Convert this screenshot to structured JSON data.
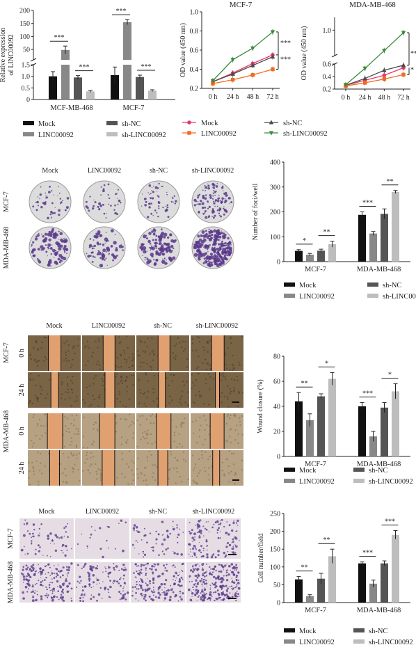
{
  "colors": {
    "mock": "#111111",
    "linc": "#888888",
    "shnc": "#555555",
    "shlinc": "#bdbdbd",
    "mock_line": "#e8356a",
    "linc_line": "#f06a1e",
    "shnc_line": "#4a4a4a",
    "shlinc_line": "#3a8a3a",
    "crystal_violet": "#5b3a8c",
    "wound_gap": "#e0a070",
    "well_bg": "#dcdcdc"
  },
  "legend_bar": [
    "Mock",
    "sh-NC",
    "LINC00092",
    "sh-LINC00092"
  ],
  "legend_line": [
    "Mock",
    "sh-NC",
    "LINC00092",
    "sh-LINC00092"
  ],
  "groups": [
    "Mock",
    "LINC00092",
    "sh-NC",
    "sh-LINC00092"
  ],
  "rows": {
    "foci": [
      "MCF-7",
      "MDA-MB-468"
    ],
    "wound": [
      "MCF-7",
      "MDA-MB-468"
    ],
    "wound_times": [
      "0 h",
      "24 h"
    ],
    "transwell": [
      "MCF-7",
      "MDA-MB-468"
    ]
  },
  "chart_data": [
    {
      "id": "expr",
      "type": "bar",
      "ylabel": "Relative expression of LINC00092",
      "ylim_broken": [
        [
          0,
          1.5
        ],
        [
          10,
          200
        ]
      ],
      "yticks": [
        "0",
        "0.5",
        "1.0",
        "1.5",
        "50",
        "100",
        "150",
        "200"
      ],
      "categories": [
        "MCF-MB-468",
        "MCF-7"
      ],
      "series": [
        {
          "name": "Mock",
          "values": [
            1.0,
            1.05
          ],
          "err": [
            0.2,
            0.35
          ]
        },
        {
          "name": "LINC00092",
          "values": [
            48,
            155
          ],
          "err": [
            15,
            10
          ]
        },
        {
          "name": "sh-NC",
          "values": [
            0.95,
            0.97
          ],
          "err": [
            0.08,
            0.08
          ]
        },
        {
          "name": "sh-LINC00092",
          "values": [
            0.35,
            0.38
          ],
          "err": [
            0.04,
            0.04
          ]
        }
      ],
      "sig": [
        "***",
        "***",
        "***",
        "***"
      ]
    },
    {
      "id": "od_mcf7",
      "type": "line",
      "title": "MCF-7",
      "ylabel": "OD value (450 nm)",
      "x": [
        "0 h",
        "24 h",
        "48 h",
        "72 h"
      ],
      "ylim": [
        0.2,
        1.0
      ],
      "yticks": [
        "0.2",
        "0.4",
        "0.6",
        "0.8",
        "1.0"
      ],
      "series": [
        {
          "name": "Mock",
          "values": [
            0.27,
            0.36,
            0.46,
            0.55
          ]
        },
        {
          "name": "sh-NC",
          "values": [
            0.27,
            0.35,
            0.44,
            0.53
          ]
        },
        {
          "name": "LINC00092",
          "values": [
            0.25,
            0.29,
            0.34,
            0.4
          ]
        },
        {
          "name": "sh-LINC00092",
          "values": [
            0.28,
            0.5,
            0.62,
            0.79
          ]
        }
      ],
      "sig": [
        "***",
        "***"
      ]
    },
    {
      "id": "od_mda",
      "type": "line",
      "title": "MDA-MB-468",
      "ylabel": "OD value (450 nm)",
      "x": [
        "0 h",
        "24 h",
        "48 h",
        "72 h"
      ],
      "ylim_broken": [
        [
          0.2,
          0.6
        ],
        [
          0.8,
          1.1
        ]
      ],
      "yticks": [
        "0.2",
        "0.4",
        "0.6",
        "1.0"
      ],
      "series": [
        {
          "name": "Mock",
          "values": [
            0.26,
            0.34,
            0.42,
            0.54
          ]
        },
        {
          "name": "sh-NC",
          "values": [
            0.26,
            0.37,
            0.5,
            0.58
          ]
        },
        {
          "name": "LINC00092",
          "values": [
            0.25,
            0.3,
            0.36,
            0.43
          ]
        },
        {
          "name": "sh-LINC00092",
          "values": [
            0.27,
            0.53,
            0.84,
            0.98
          ]
        }
      ],
      "sig": [
        "**",
        "*"
      ]
    },
    {
      "id": "foci",
      "type": "bar",
      "ylabel": "Number of foci/well",
      "ylim": [
        0,
        400
      ],
      "yticks": [
        "0",
        "100",
        "200",
        "300",
        "400"
      ],
      "categories": [
        "MCF-7",
        "MDA-MB-468"
      ],
      "series": [
        {
          "name": "Mock",
          "values": [
            43,
            188
          ],
          "err": [
            5,
            12
          ]
        },
        {
          "name": "LINC00092",
          "values": [
            28,
            113
          ],
          "err": [
            5,
            8
          ]
        },
        {
          "name": "sh-NC",
          "values": [
            44,
            192
          ],
          "err": [
            6,
            20
          ]
        },
        {
          "name": "sh-LINC00092",
          "values": [
            70,
            280
          ],
          "err": [
            12,
            6
          ]
        }
      ],
      "sig": [
        "*",
        "**",
        "***",
        "**"
      ]
    },
    {
      "id": "wound",
      "type": "bar",
      "ylabel": "Wound closure (%)",
      "ylim": [
        0,
        80
      ],
      "yticks": [
        "0",
        "20",
        "40",
        "60",
        "80"
      ],
      "categories": [
        "MCF-7",
        "MDA-MB-468"
      ],
      "series": [
        {
          "name": "Mock",
          "values": [
            44,
            40
          ],
          "err": [
            7,
            3
          ]
        },
        {
          "name": "LINC00092",
          "values": [
            29,
            16
          ],
          "err": [
            5,
            4
          ]
        },
        {
          "name": "sh-NC",
          "values": [
            48,
            39
          ],
          "err": [
            2,
            4
          ]
        },
        {
          "name": "sh-LINC00092",
          "values": [
            62,
            52
          ],
          "err": [
            5,
            6
          ]
        }
      ],
      "sig": [
        "**",
        "*",
        "***",
        "*"
      ]
    },
    {
      "id": "transwell",
      "type": "bar",
      "ylabel": "Cell number/field",
      "ylim": [
        0,
        250
      ],
      "yticks": [
        "0",
        "50",
        "100",
        "150",
        "200",
        "250"
      ],
      "categories": [
        "MCF-7",
        "MDA-MB-468"
      ],
      "series": [
        {
          "name": "Mock",
          "values": [
            65,
            110
          ],
          "err": [
            8,
            4
          ]
        },
        {
          "name": "LINC00092",
          "values": [
            18,
            53
          ],
          "err": [
            4,
            10
          ]
        },
        {
          "name": "sh-NC",
          "values": [
            67,
            110
          ],
          "err": [
            15,
            7
          ]
        },
        {
          "name": "sh-LINC00092",
          "values": [
            130,
            190
          ],
          "err": [
            20,
            12
          ]
        }
      ],
      "sig": [
        "**",
        "**",
        "***",
        "***"
      ]
    }
  ]
}
